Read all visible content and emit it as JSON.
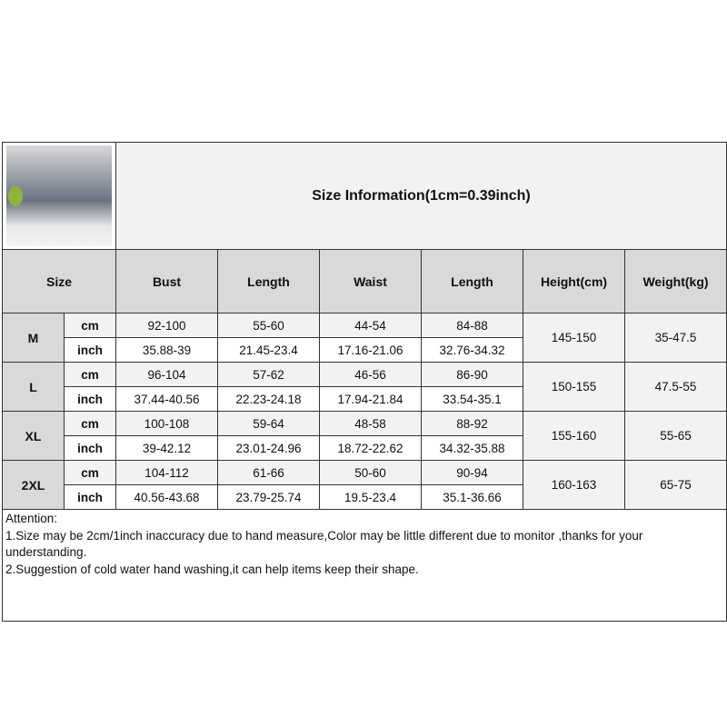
{
  "title": "Size Information(1cm=0.39inch)",
  "photo": {
    "alt": "Model wearing grey striped pajama set"
  },
  "headers": {
    "size": "Size",
    "columns": [
      "Bust",
      "Length",
      "Waist",
      "Length",
      "Height(cm)",
      "Weight(kg)"
    ]
  },
  "rows": [
    {
      "size": "M",
      "cm": [
        "92-100",
        "55-60",
        "44-54",
        "84-88"
      ],
      "inch": [
        "35.88-39",
        "21.45-23.4",
        "17.16-21.06",
        "32.76-34.32"
      ],
      "height": "145-150",
      "weight": "35-47.5"
    },
    {
      "size": "L",
      "cm": [
        "96-104",
        "57-62",
        "46-56",
        "86-90"
      ],
      "inch": [
        "37.44-40.56",
        "22.23-24.18",
        "17.94-21.84",
        "33.54-35.1"
      ],
      "height": "150-155",
      "weight": "47.5-55"
    },
    {
      "size": "XL",
      "cm": [
        "100-108",
        "59-64",
        "48-58",
        "88-92"
      ],
      "inch": [
        "39-42.12",
        "23.01-24.96",
        "18.72-22.62",
        "34.32-35.88"
      ],
      "height": "155-160",
      "weight": "55-65"
    },
    {
      "size": "2XL",
      "cm": [
        "104-112",
        "61-66",
        "50-60",
        "90-94"
      ],
      "inch": [
        "40.56-43.68",
        "23.79-25.74",
        "19.5-23.4",
        "35.1-36.66"
      ],
      "height": "160-163",
      "weight": "65-75"
    }
  ],
  "units": {
    "cm": "cm",
    "inch": "inch"
  },
  "notes": [
    "Attention:",
    "1.Size may be 2cm/1inch inaccuracy due to hand measure,Color may be little different due to monitor ,thanks for your understanding.",
    "2.Suggestion of cold water hand washing,it can help items keep their shape."
  ]
}
